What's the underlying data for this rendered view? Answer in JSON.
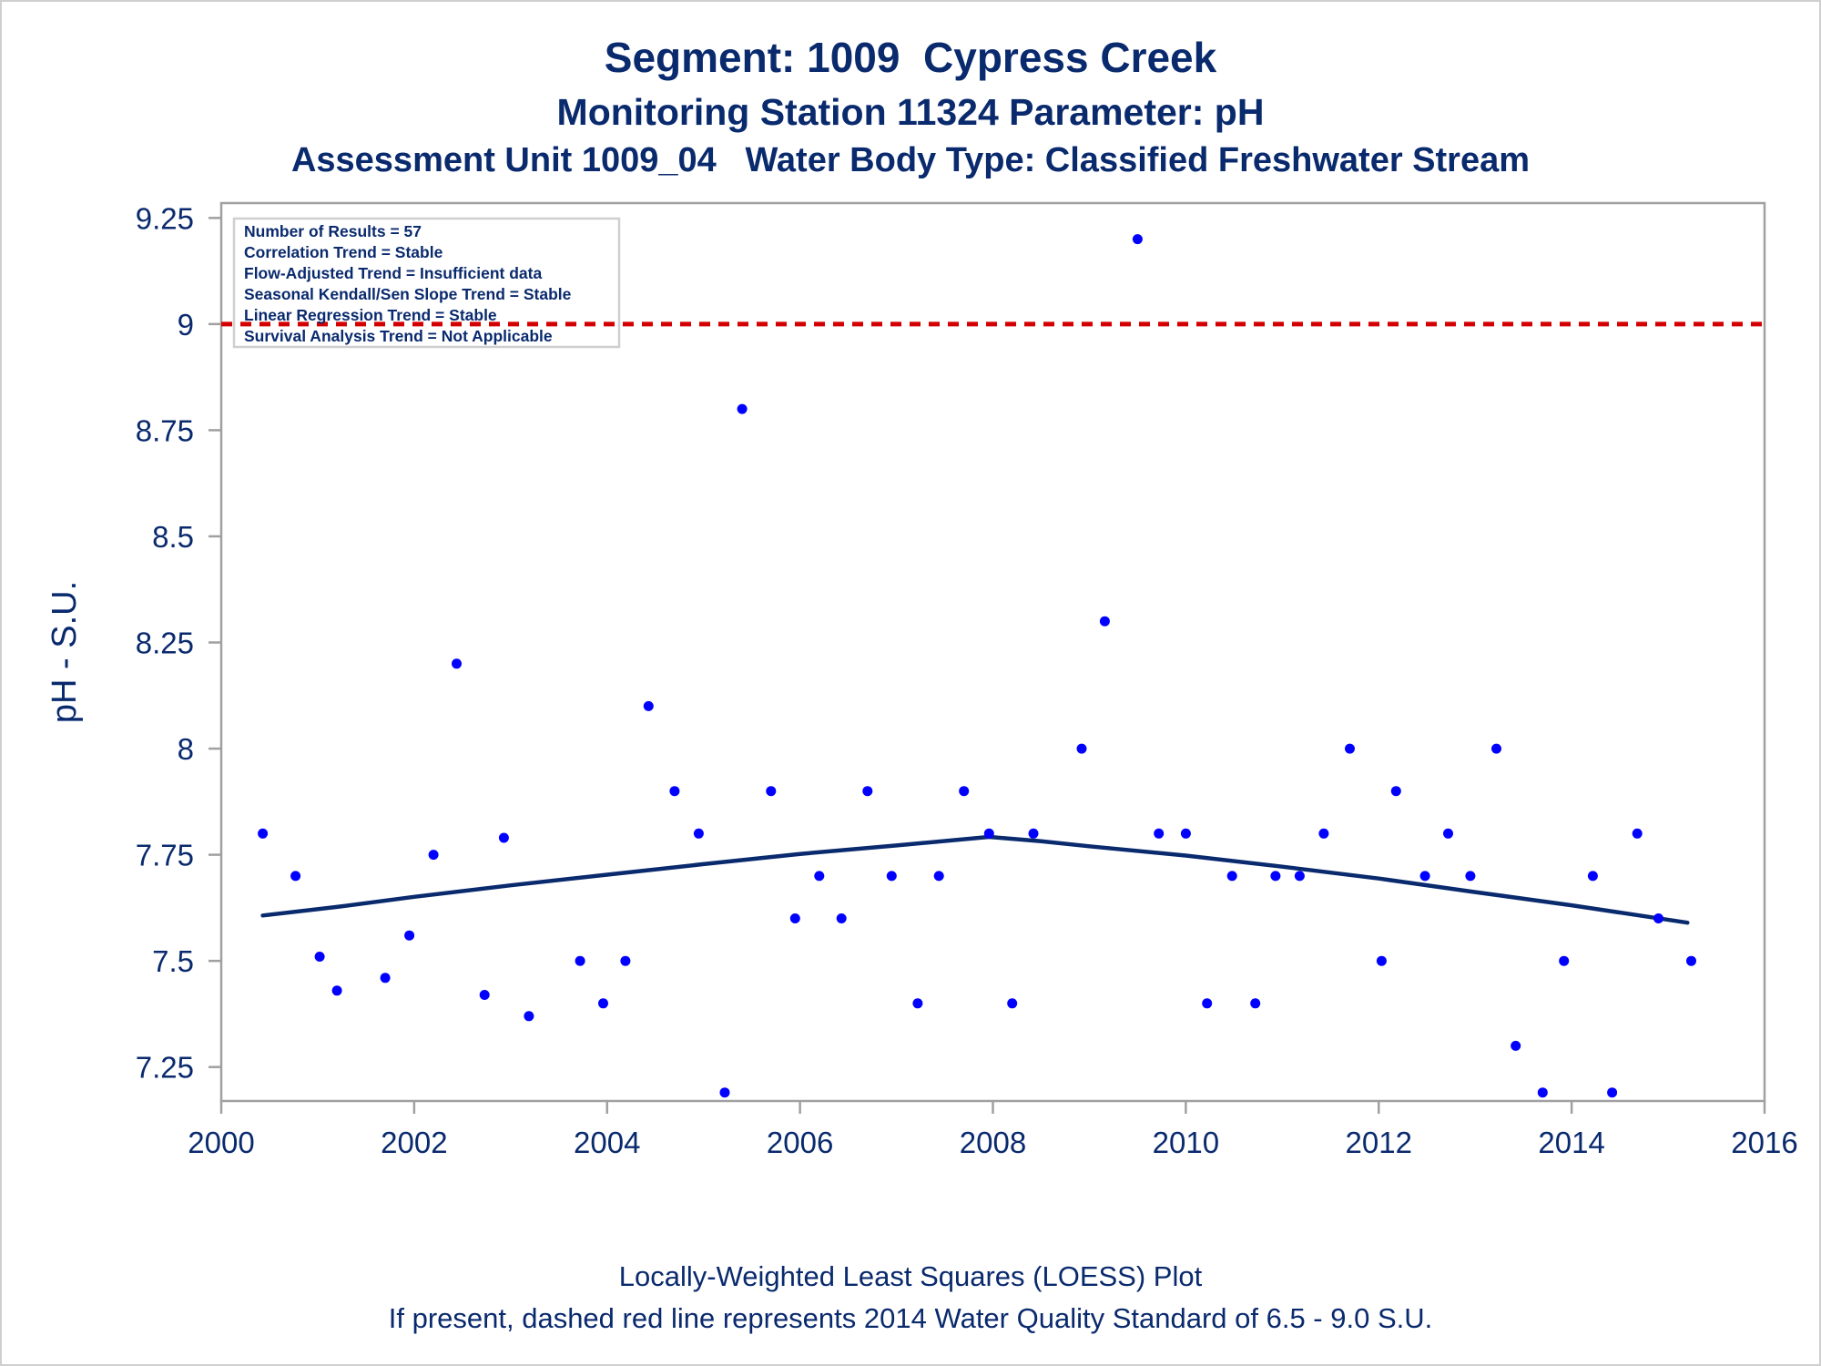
{
  "titles": {
    "line1": "Segment: 1009  Cypress Creek",
    "line2": "Monitoring Station 11324 Parameter: pH",
    "line3": "Assessment Unit 1009_04   Water Body Type: Classified Freshwater Stream"
  },
  "footnotes": {
    "line1": "Locally-Weighted Least Squares (LOESS) Plot",
    "line2": "If present, dashed red line represents 2014 Water Quality Standard of 6.5 - 9.0 S.U."
  },
  "stats_box": [
    "Number of Results = 57",
    "Correlation Trend = Stable",
    "Flow-Adjusted Trend = Insufficient data",
    "Seasonal Kendall/Sen Slope Trend = Stable",
    "Linear Regression Trend = Stable",
    "Survival Analysis Trend = Not Applicable"
  ],
  "colors": {
    "text": "#0a2a6e",
    "points": "#0000ff",
    "loess": "#0a2a6e",
    "standard_line": "#d40000",
    "frame": "#a0a0a0"
  },
  "chart_data": {
    "type": "scatter",
    "xlabel": "",
    "ylabel": "pH - S.U.",
    "xlim": [
      2000,
      2016
    ],
    "ylim": [
      7.17,
      9.285
    ],
    "x_ticks": [
      2000,
      2002,
      2004,
      2006,
      2008,
      2010,
      2012,
      2014,
      2016
    ],
    "x_tick_labels": [
      "2000",
      "2002",
      "2004",
      "2006",
      "2008",
      "2010",
      "2012",
      "2014",
      "2016"
    ],
    "y_ticks": [
      7.25,
      7.5,
      7.75,
      8,
      8.25,
      8.5,
      8.75,
      9,
      9.25
    ],
    "y_tick_labels": [
      "7.25",
      "7.5",
      "7.75",
      "8",
      "8.25",
      "8.5",
      "8.75",
      "9",
      "9.25"
    ],
    "grid": false,
    "series": [
      {
        "kind": "points",
        "points": [
          [
            2000.43,
            7.8
          ],
          [
            2000.77,
            7.7
          ],
          [
            2001.02,
            7.51
          ],
          [
            2001.2,
            7.43
          ],
          [
            2001.7,
            7.46
          ],
          [
            2001.95,
            7.56
          ],
          [
            2002.2,
            7.75
          ],
          [
            2002.44,
            8.2
          ],
          [
            2002.73,
            7.42
          ],
          [
            2002.93,
            7.79
          ],
          [
            2003.19,
            7.37
          ],
          [
            2003.72,
            7.5
          ],
          [
            2003.96,
            7.4
          ],
          [
            2004.19,
            7.5
          ],
          [
            2004.43,
            8.1
          ],
          [
            2004.7,
            7.9
          ],
          [
            2004.95,
            7.8
          ],
          [
            2005.22,
            7.19
          ],
          [
            2005.4,
            8.8
          ],
          [
            2005.7,
            7.9
          ],
          [
            2005.95,
            7.6
          ],
          [
            2006.2,
            7.7
          ],
          [
            2006.43,
            7.6
          ],
          [
            2006.7,
            7.9
          ],
          [
            2006.95,
            7.7
          ],
          [
            2007.22,
            7.4
          ],
          [
            2007.44,
            7.7
          ],
          [
            2007.7,
            7.9
          ],
          [
            2007.96,
            7.8
          ],
          [
            2008.2,
            7.4
          ],
          [
            2008.42,
            7.8
          ],
          [
            2008.92,
            8.0
          ],
          [
            2009.16,
            8.3
          ],
          [
            2009.5,
            9.2
          ],
          [
            2009.72,
            7.8
          ],
          [
            2010.0,
            7.8
          ],
          [
            2010.22,
            7.4
          ],
          [
            2010.48,
            7.7
          ],
          [
            2010.72,
            7.4
          ],
          [
            2010.93,
            7.7
          ],
          [
            2011.18,
            7.7
          ],
          [
            2011.43,
            7.8
          ],
          [
            2011.7,
            8.0
          ],
          [
            2012.03,
            7.5
          ],
          [
            2012.18,
            7.9
          ],
          [
            2012.48,
            7.7
          ],
          [
            2012.72,
            7.8
          ],
          [
            2012.95,
            7.7
          ],
          [
            2013.22,
            8.0
          ],
          [
            2013.42,
            7.3
          ],
          [
            2013.7,
            7.19
          ],
          [
            2013.92,
            7.5
          ],
          [
            2014.22,
            7.7
          ],
          [
            2014.42,
            7.19
          ],
          [
            2014.68,
            7.8
          ],
          [
            2014.9,
            7.6
          ],
          [
            2015.24,
            7.5
          ]
        ]
      },
      {
        "kind": "loess",
        "points": [
          [
            2000.43,
            7.607
          ],
          [
            2001.2,
            7.627
          ],
          [
            2002.0,
            7.651
          ],
          [
            2003.0,
            7.678
          ],
          [
            2004.0,
            7.703
          ],
          [
            2005.0,
            7.728
          ],
          [
            2006.0,
            7.752
          ],
          [
            2007.0,
            7.772
          ],
          [
            2007.96,
            7.792
          ],
          [
            2008.5,
            7.782
          ],
          [
            2009.0,
            7.77
          ],
          [
            2010.0,
            7.748
          ],
          [
            2011.0,
            7.722
          ],
          [
            2012.0,
            7.694
          ],
          [
            2013.0,
            7.662
          ],
          [
            2014.0,
            7.631
          ],
          [
            2015.2,
            7.59
          ]
        ]
      },
      {
        "kind": "reference",
        "y": 9.0,
        "style": "dashed"
      }
    ]
  }
}
